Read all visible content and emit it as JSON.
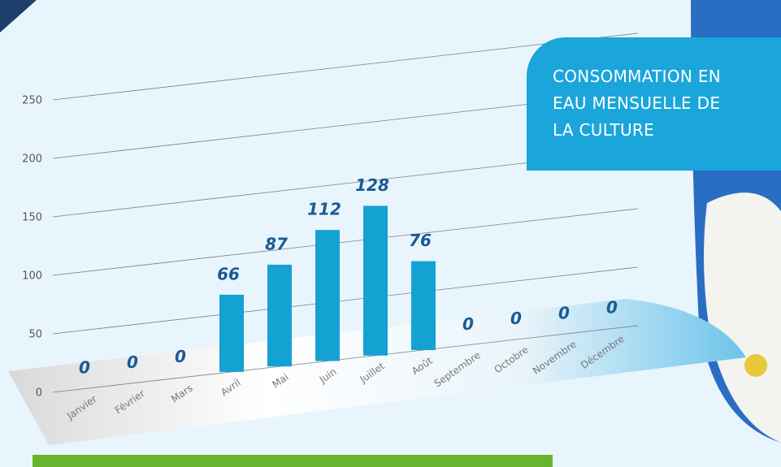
{
  "chart_data": {
    "type": "bar",
    "title": "CONSOMMATION EN EAU MENSUELLE DE LA CULTURE",
    "categories": [
      "Janvier",
      "Février",
      "Mars",
      "Avril",
      "Mai",
      "Juin",
      "Juillet",
      "Août",
      "Septembre",
      "Octobre",
      "Novembre",
      "Décembre"
    ],
    "values": [
      0,
      0,
      0,
      66,
      87,
      112,
      128,
      76,
      0,
      0,
      0,
      0
    ],
    "color": "#14a2d2",
    "ylim": [
      0,
      250
    ],
    "yticks": [
      0,
      50,
      100,
      150,
      200,
      250
    ],
    "grid": true
  }
}
